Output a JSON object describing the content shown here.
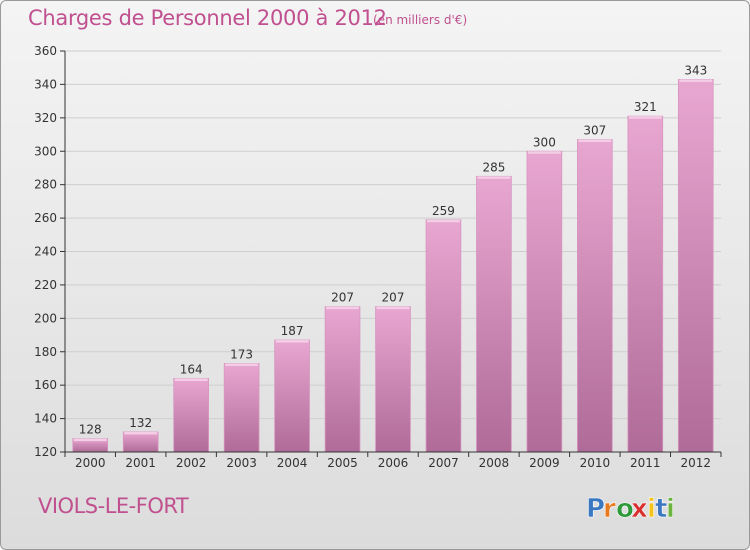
{
  "title": "Charges de Personnel 2000 à 2012",
  "subtitle": "(en milliers d'€)",
  "commune": "VIOLS-LE-FORT",
  "logo": {
    "text": "Proxiti",
    "letters": [
      "P",
      "r",
      "o",
      "x",
      "i",
      "t",
      "i"
    ],
    "colors": [
      "#3b78c2",
      "#e87a1e",
      "#2f9a3a",
      "#d8302f",
      "#f2c419",
      "#3b78c2",
      "#6cb33f"
    ]
  },
  "colors": {
    "title": "#c0508f",
    "bar_top": "#e8a7d1",
    "bar_bottom": "#b06b98",
    "axis": "#333333",
    "grid": "#cfcfcf"
  },
  "chart_data": {
    "type": "bar",
    "categories": [
      "2000",
      "2001",
      "2002",
      "2003",
      "2004",
      "2005",
      "2006",
      "2007",
      "2008",
      "2009",
      "2010",
      "2011",
      "2012"
    ],
    "values": [
      128,
      132,
      164,
      173,
      187,
      207,
      207,
      259,
      285,
      300,
      307,
      321,
      343
    ],
    "ylim": [
      120,
      360
    ],
    "yticks": [
      120,
      140,
      160,
      180,
      200,
      220,
      240,
      260,
      280,
      300,
      320,
      340,
      360
    ],
    "grid": true
  }
}
